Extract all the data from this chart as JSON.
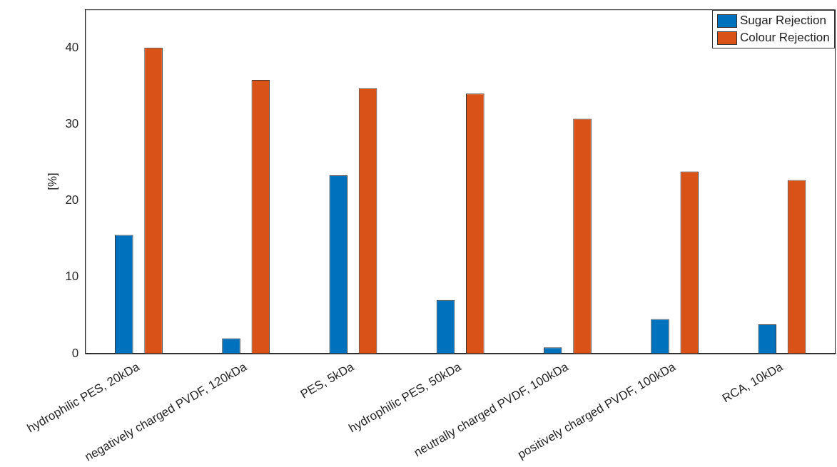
{
  "chart_data": {
    "type": "bar",
    "ylabel": "[%]",
    "categories": [
      "hydrophilic PES, 20kDa",
      "negatively charged PVDF, 120kDa",
      "PES, 5kDa",
      "hydrophilic PES, 50kDa",
      "neutrally charged PVDF, 100kDa",
      "positively charged PVDF, 100kDa",
      "RCA, 10kDa"
    ],
    "series": [
      {
        "name": "Sugar Rejection",
        "color": "#0072bd",
        "values": [
          15.5,
          2,
          23.3,
          7,
          0.8,
          4.5,
          3.8
        ]
      },
      {
        "name": "Colour Rejection",
        "color": "#d95319",
        "values": [
          40,
          35.8,
          34.7,
          34,
          30.7,
          23.8,
          22.7
        ]
      }
    ],
    "ylim": [
      0,
      45
    ],
    "yticks": [
      0,
      10,
      20,
      30,
      40
    ],
    "grid": false,
    "legend": "top right"
  }
}
